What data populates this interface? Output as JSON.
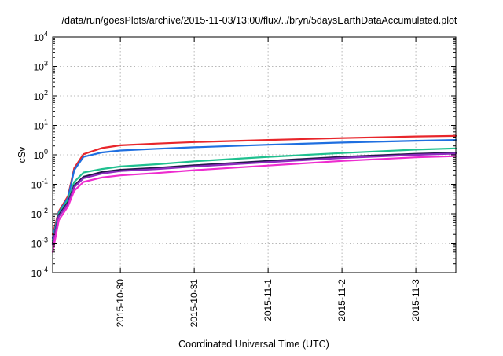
{
  "chart_data": {
    "type": "line",
    "title": "/data/run/goesPlots/archive/2015-11-03/13:00/flux/../bryn/5daysEarthDataAccumulated.plot",
    "xlabel": "Coordinated Universal Time (UTC)",
    "ylabel": "cSv",
    "y_scale": "log",
    "ylim": [
      0.0001,
      10000
    ],
    "xlim": [
      "2015-10-29 02:00",
      "2015-11-03 13:00"
    ],
    "x_ticks": [
      "2015-10-30",
      "2015-10-31",
      "2015-11-1",
      "2015-11-2",
      "2015-11-3"
    ],
    "y_ticks": [
      {
        "value": 0.0001,
        "base": "10",
        "exp": "-4"
      },
      {
        "value": 0.001,
        "base": "10",
        "exp": "-3"
      },
      {
        "value": 0.01,
        "base": "10",
        "exp": "-2"
      },
      {
        "value": 0.1,
        "base": "10",
        "exp": "-1"
      },
      {
        "value": 1,
        "base": "10",
        "exp": "0"
      },
      {
        "value": 10,
        "base": "10",
        "exp": "1"
      },
      {
        "value": 100,
        "base": "10",
        "exp": "2"
      },
      {
        "value": 1000,
        "base": "10",
        "exp": "3"
      },
      {
        "value": 10000,
        "base": "10",
        "exp": "4"
      }
    ],
    "grid": true,
    "legend": "none",
    "series": [
      {
        "color": "#e8262b",
        "points": [
          [
            "2015-10-29 02:00",
            0.002
          ],
          [
            "2015-10-29 04:00",
            0.012
          ],
          [
            "2015-10-29 07:00",
            0.04
          ],
          [
            "2015-10-29 09:00",
            0.35
          ],
          [
            "2015-10-29 12:00",
            1.05
          ],
          [
            "2015-10-29 18:00",
            1.7
          ],
          [
            "2015-10-30 00:00",
            2.1
          ],
          [
            "2015-10-30 12:00",
            2.4
          ],
          [
            "2015-10-31 00:00",
            2.7
          ],
          [
            "2015-11-01 00:00",
            3.2
          ],
          [
            "2015-11-02 00:00",
            3.7
          ],
          [
            "2015-11-03 00:00",
            4.2
          ],
          [
            "2015-11-03 13:00",
            4.4
          ]
        ]
      },
      {
        "color": "#1f6fe0",
        "points": [
          [
            "2015-10-29 02:00",
            0.0015
          ],
          [
            "2015-10-29 04:00",
            0.011
          ],
          [
            "2015-10-29 07:00",
            0.035
          ],
          [
            "2015-10-29 09:00",
            0.3
          ],
          [
            "2015-10-29 12:00",
            0.85
          ],
          [
            "2015-10-29 18:00",
            1.2
          ],
          [
            "2015-10-30 00:00",
            1.4
          ],
          [
            "2015-10-30 12:00",
            1.6
          ],
          [
            "2015-10-31 00:00",
            1.8
          ],
          [
            "2015-11-01 00:00",
            2.2
          ],
          [
            "2015-11-02 00:00",
            2.6
          ],
          [
            "2015-11-03 00:00",
            3.0
          ],
          [
            "2015-11-03 13:00",
            3.2
          ]
        ]
      },
      {
        "color": "#1fc08f",
        "points": [
          [
            "2015-10-29 02:00",
            0.0012
          ],
          [
            "2015-10-29 04:00",
            0.01
          ],
          [
            "2015-10-29 07:00",
            0.03
          ],
          [
            "2015-10-29 09:00",
            0.12
          ],
          [
            "2015-10-29 12:00",
            0.25
          ],
          [
            "2015-10-29 18:00",
            0.33
          ],
          [
            "2015-10-30 00:00",
            0.4
          ],
          [
            "2015-10-30 12:00",
            0.48
          ],
          [
            "2015-10-31 00:00",
            0.6
          ],
          [
            "2015-11-01 00:00",
            0.85
          ],
          [
            "2015-11-02 00:00",
            1.15
          ],
          [
            "2015-11-03 00:00",
            1.5
          ],
          [
            "2015-11-03 13:00",
            1.65
          ]
        ]
      },
      {
        "color": "#241a4a",
        "points": [
          [
            "2015-10-29 02:00",
            0.001
          ],
          [
            "2015-10-29 04:00",
            0.009
          ],
          [
            "2015-10-29 07:00",
            0.025
          ],
          [
            "2015-10-29 09:00",
            0.09
          ],
          [
            "2015-10-29 12:00",
            0.18
          ],
          [
            "2015-10-29 18:00",
            0.26
          ],
          [
            "2015-10-30 00:00",
            0.31
          ],
          [
            "2015-10-30 12:00",
            0.36
          ],
          [
            "2015-10-31 00:00",
            0.44
          ],
          [
            "2015-11-01 00:00",
            0.62
          ],
          [
            "2015-11-02 00:00",
            0.85
          ],
          [
            "2015-11-03 00:00",
            1.08
          ],
          [
            "2015-11-03 13:00",
            1.18
          ]
        ]
      },
      {
        "color": "#8e2cc0",
        "points": [
          [
            "2015-10-29 02:00",
            0.0009
          ],
          [
            "2015-10-29 04:00",
            0.008
          ],
          [
            "2015-10-29 07:00",
            0.022
          ],
          [
            "2015-10-29 09:00",
            0.08
          ],
          [
            "2015-10-29 12:00",
            0.16
          ],
          [
            "2015-10-29 18:00",
            0.23
          ],
          [
            "2015-10-30 00:00",
            0.28
          ],
          [
            "2015-10-30 12:00",
            0.33
          ],
          [
            "2015-10-31 00:00",
            0.4
          ],
          [
            "2015-11-01 00:00",
            0.56
          ],
          [
            "2015-11-02 00:00",
            0.78
          ],
          [
            "2015-11-03 00:00",
            1.0
          ],
          [
            "2015-11-03 13:00",
            1.1
          ]
        ]
      },
      {
        "color": "#ee2ccf",
        "points": [
          [
            "2015-10-29 02:00",
            0.0005
          ],
          [
            "2015-10-29 04:00",
            0.006
          ],
          [
            "2015-10-29 07:00",
            0.018
          ],
          [
            "2015-10-29 09:00",
            0.06
          ],
          [
            "2015-10-29 12:00",
            0.12
          ],
          [
            "2015-10-29 18:00",
            0.17
          ],
          [
            "2015-10-30 00:00",
            0.2
          ],
          [
            "2015-10-30 12:00",
            0.24
          ],
          [
            "2015-10-31 00:00",
            0.3
          ],
          [
            "2015-11-01 00:00",
            0.43
          ],
          [
            "2015-11-02 00:00",
            0.62
          ],
          [
            "2015-11-03 00:00",
            0.82
          ],
          [
            "2015-11-03 13:00",
            0.9
          ]
        ]
      }
    ]
  }
}
